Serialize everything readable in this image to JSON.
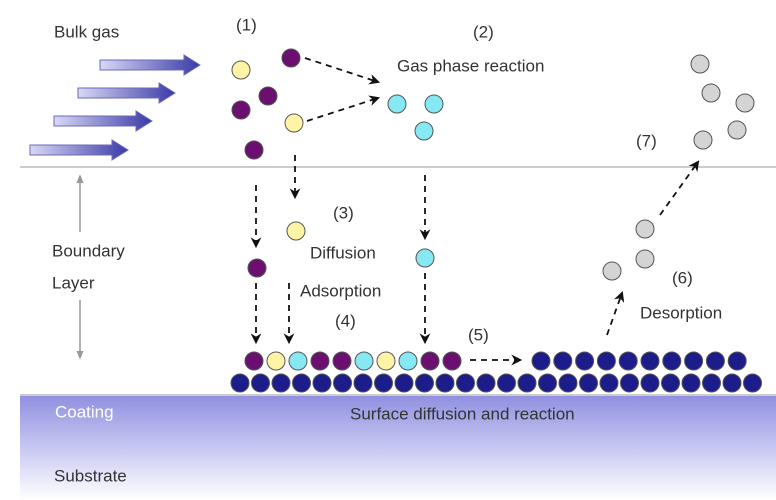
{
  "bulk_gas": "Bulk gas",
  "boundary_layer": [
    "Boundary",
    "Layer"
  ],
  "coating": "Coating",
  "substrate": "Substrate",
  "surface_reaction": "Surface diffusion and reaction",
  "step_1": {
    "number": "(1)"
  },
  "step_2": {
    "number": "(2)",
    "label": "Gas phase reaction"
  },
  "step_3": {
    "number": "(3)",
    "label": "Diffusion"
  },
  "step_4": {
    "number": "(4)",
    "label": "Adsorption"
  },
  "step_5": {
    "number": "(5)"
  },
  "step_6": {
    "number": "(6)",
    "label": "Desorption"
  },
  "step_7": {
    "number": "(7)"
  }
}
